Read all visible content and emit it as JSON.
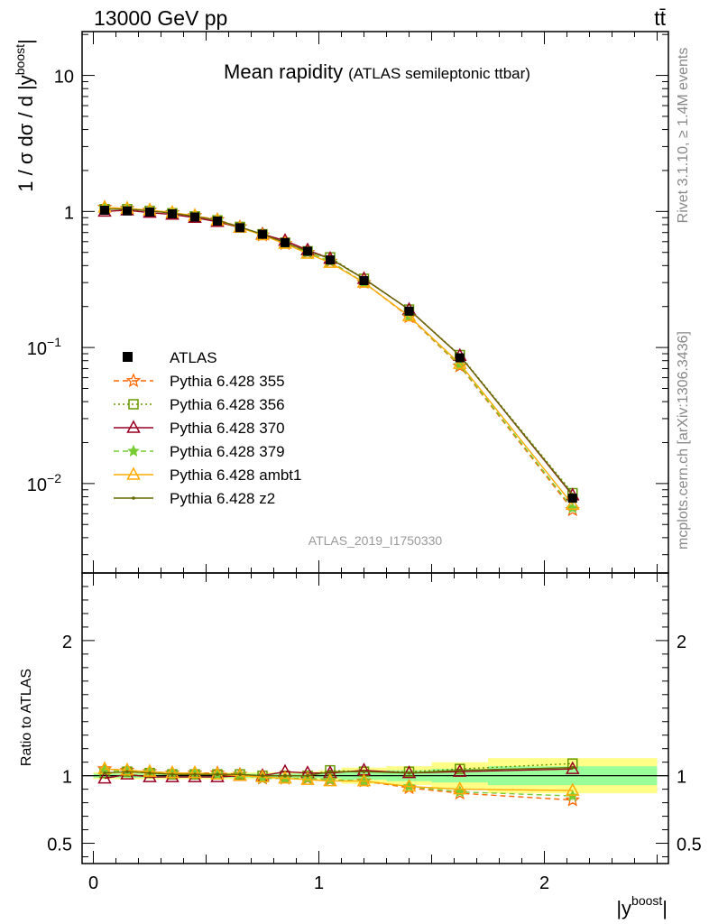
{
  "header": {
    "left": "13000 GeV pp",
    "right": "tt̄"
  },
  "side_text": {
    "rivet": "Rivet 3.1.10, ≥ 1.4M events",
    "url": "mcplots.cern.ch [arXiv:1306.3436]"
  },
  "analysis_id": "ATLAS_2019_I1750330",
  "chart_data": [
    {
      "type": "line",
      "title": "Mean rapidity",
      "subtitle": "(ATLAS semileptonic ttbar)",
      "ylabel": "1 / σ dσ / d |y^boost|",
      "ylabel_parts": {
        "main": "1 / σ dσ / d |y",
        "sup": "boost",
        "close": "|"
      },
      "yscale": "log",
      "ylim": [
        0.0022,
        21
      ],
      "xlim": [
        -0.05,
        2.55
      ],
      "y_ticks": [
        {
          "value": 10,
          "label": "10"
        },
        {
          "value": 1,
          "label": "1"
        },
        {
          "value": 0.1,
          "label": "10",
          "sup": "−1"
        },
        {
          "value": 0.01,
          "label": "10",
          "sup": "−2"
        }
      ],
      "legend_position": "middle-left",
      "x": [
        0.05,
        0.15,
        0.25,
        0.35,
        0.45,
        0.55,
        0.65,
        0.75,
        0.85,
        0.95,
        1.05,
        1.2,
        1.4,
        1.625,
        2.125
      ],
      "x_bin_edges": [
        0,
        0.1,
        0.2,
        0.3,
        0.4,
        0.5,
        0.6,
        0.7,
        0.8,
        0.9,
        1.0,
        1.1,
        1.3,
        1.5,
        1.75,
        2.5
      ],
      "data": {
        "name": "ATLAS",
        "values": [
          1.02,
          1.01,
          0.99,
          0.96,
          0.91,
          0.85,
          0.76,
          0.68,
          0.59,
          0.51,
          0.44,
          0.31,
          0.185,
          0.084,
          0.0078
        ]
      },
      "series": [
        {
          "name": "Pythia 6.428 355",
          "color": "#ff6600",
          "dash": "6,4",
          "marker": "star-open",
          "values": [
            1.07,
            1.05,
            1.02,
            0.98,
            0.93,
            0.87,
            0.77,
            0.67,
            0.58,
            0.5,
            0.43,
            0.3,
            0.168,
            0.073,
            0.0064
          ]
        },
        {
          "name": "Pythia 6.428 356",
          "color": "#669900",
          "dash": "2,3",
          "marker": "square-open",
          "values": [
            1.04,
            1.04,
            1.01,
            0.97,
            0.92,
            0.86,
            0.77,
            0.68,
            0.59,
            0.51,
            0.46,
            0.32,
            0.19,
            0.088,
            0.0085
          ]
        },
        {
          "name": "Pythia 6.428 370",
          "color": "#990022",
          "dash": "",
          "marker": "triangle-open",
          "values": [
            1.0,
            1.02,
            0.98,
            0.95,
            0.9,
            0.84,
            0.76,
            0.68,
            0.61,
            0.52,
            0.45,
            0.32,
            0.19,
            0.087,
            0.0082
          ]
        },
        {
          "name": "Pythia 6.428 379",
          "color": "#77cc33",
          "dash": "6,4",
          "marker": "star-filled",
          "values": [
            1.06,
            1.04,
            1.02,
            0.98,
            0.93,
            0.86,
            0.77,
            0.67,
            0.58,
            0.5,
            0.43,
            0.3,
            0.17,
            0.074,
            0.0066
          ]
        },
        {
          "name": "Pythia 6.428 ambt1",
          "color": "#ffaa00",
          "dash": "",
          "marker": "triangle-open",
          "values": [
            1.07,
            1.05,
            1.02,
            0.98,
            0.93,
            0.86,
            0.76,
            0.67,
            0.58,
            0.49,
            0.42,
            0.3,
            0.17,
            0.076,
            0.007
          ]
        },
        {
          "name": "Pythia 6.428 z2",
          "color": "#666600",
          "dash": "",
          "marker": "dot",
          "values": [
            1.04,
            1.04,
            1.01,
            0.97,
            0.92,
            0.86,
            0.77,
            0.68,
            0.59,
            0.51,
            0.45,
            0.32,
            0.19,
            0.087,
            0.0083
          ]
        }
      ]
    },
    {
      "type": "line",
      "ylabel": "Ratio to ATLAS",
      "xlabel": "|y^boost|",
      "xlabel_parts": {
        "main": "|y",
        "sup": "boost",
        "close": "|"
      },
      "ylim": [
        0.35,
        2.5
      ],
      "xlim": [
        -0.05,
        2.55
      ],
      "x_ticks": [
        {
          "value": 0,
          "label": "0"
        },
        {
          "value": 1,
          "label": "1"
        },
        {
          "value": 2,
          "label": "2"
        }
      ],
      "y_ticks": [
        {
          "value": 2,
          "label": "2"
        },
        {
          "value": 1,
          "label": "1"
        },
        {
          "value": 0.5,
          "label": "0.5"
        }
      ],
      "uncertainty_bands": {
        "stat": [
          0.015,
          0.015,
          0.015,
          0.015,
          0.015,
          0.015,
          0.015,
          0.015,
          0.015,
          0.015,
          0.02,
          0.03,
          0.04,
          0.05,
          0.07
        ],
        "total": [
          0.025,
          0.025,
          0.025,
          0.025,
          0.025,
          0.025,
          0.025,
          0.025,
          0.025,
          0.03,
          0.04,
          0.06,
          0.07,
          0.1,
          0.13
        ],
        "stat_color": "#99ff99",
        "total_color": "#ffff88"
      },
      "series": [
        {
          "name": "Pythia 6.428 355",
          "values": [
            1.05,
            1.04,
            1.03,
            1.02,
            1.02,
            1.02,
            1.01,
            0.98,
            0.98,
            0.98,
            0.97,
            0.96,
            0.91,
            0.87,
            0.82
          ]
        },
        {
          "name": "Pythia 6.428 356",
          "values": [
            1.02,
            1.03,
            1.02,
            1.01,
            1.01,
            1.01,
            1.01,
            1.0,
            1.0,
            1.0,
            1.04,
            1.03,
            1.03,
            1.05,
            1.09
          ]
        },
        {
          "name": "Pythia 6.428 370",
          "values": [
            0.98,
            1.01,
            0.99,
            0.99,
            0.99,
            0.99,
            1.0,
            1.0,
            1.03,
            1.02,
            1.02,
            1.04,
            1.02,
            1.03,
            1.05
          ]
        },
        {
          "name": "Pythia 6.428 379",
          "values": [
            1.04,
            1.03,
            1.03,
            1.02,
            1.02,
            1.01,
            1.01,
            0.98,
            0.98,
            0.98,
            0.97,
            0.96,
            0.92,
            0.88,
            0.85
          ]
        },
        {
          "name": "Pythia 6.428 ambt1",
          "values": [
            1.05,
            1.04,
            1.03,
            1.02,
            1.02,
            1.01,
            1.0,
            0.99,
            0.98,
            0.97,
            0.96,
            0.96,
            0.92,
            0.9,
            0.89
          ]
        },
        {
          "name": "Pythia 6.428 z2",
          "values": [
            1.02,
            1.03,
            1.02,
            1.01,
            1.01,
            1.01,
            1.01,
            1.0,
            1.0,
            1.0,
            1.03,
            1.03,
            1.02,
            1.04,
            1.06
          ]
        }
      ]
    }
  ]
}
